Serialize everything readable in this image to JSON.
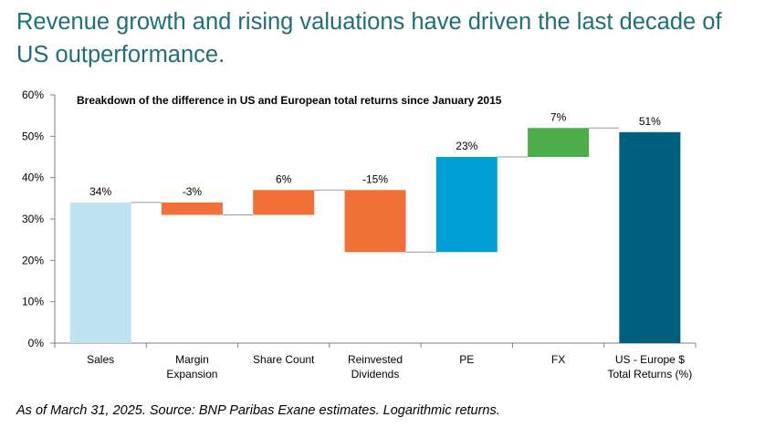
{
  "headline": "Revenue growth and rising valuations have driven the last decade of US outperformance.",
  "footnote": "As of March 31, 2025. Source: BNP Paribas Exane estimates. Logarithmic returns.",
  "chart_data": {
    "type": "bar",
    "subtype": "waterfall",
    "title": "Breakdown of the difference in US and European total returns since January 2015",
    "xlabel": "",
    "ylabel": "",
    "ylim": [
      0,
      60
    ],
    "y_ticks": [
      "0%",
      "10%",
      "20%",
      "30%",
      "40%",
      "50%",
      "60%"
    ],
    "y_tick_values": [
      0,
      10,
      20,
      30,
      40,
      50,
      60
    ],
    "grid": false,
    "legend": "none",
    "categories": [
      [
        "Sales"
      ],
      [
        "Margin",
        "Expansion"
      ],
      [
        "Share Count"
      ],
      [
        "Reinvested",
        "Dividends"
      ],
      [
        "PE"
      ],
      [
        "FX"
      ],
      [
        "US - Europe $",
        "Total Returns (%)"
      ]
    ],
    "values": [
      34,
      -3,
      6,
      -15,
      23,
      7,
      51
    ],
    "data_labels": [
      "34%",
      "-3%",
      "6%",
      "-15%",
      "23%",
      "7%",
      "51%"
    ],
    "bar_kind": [
      "start",
      "delta",
      "delta",
      "delta",
      "delta",
      "delta",
      "total"
    ],
    "colors": [
      "#bfe3f3",
      "#f07038",
      "#f07038",
      "#f07038",
      "#00a0d6",
      "#4bae4a",
      "#005f7c"
    ]
  }
}
